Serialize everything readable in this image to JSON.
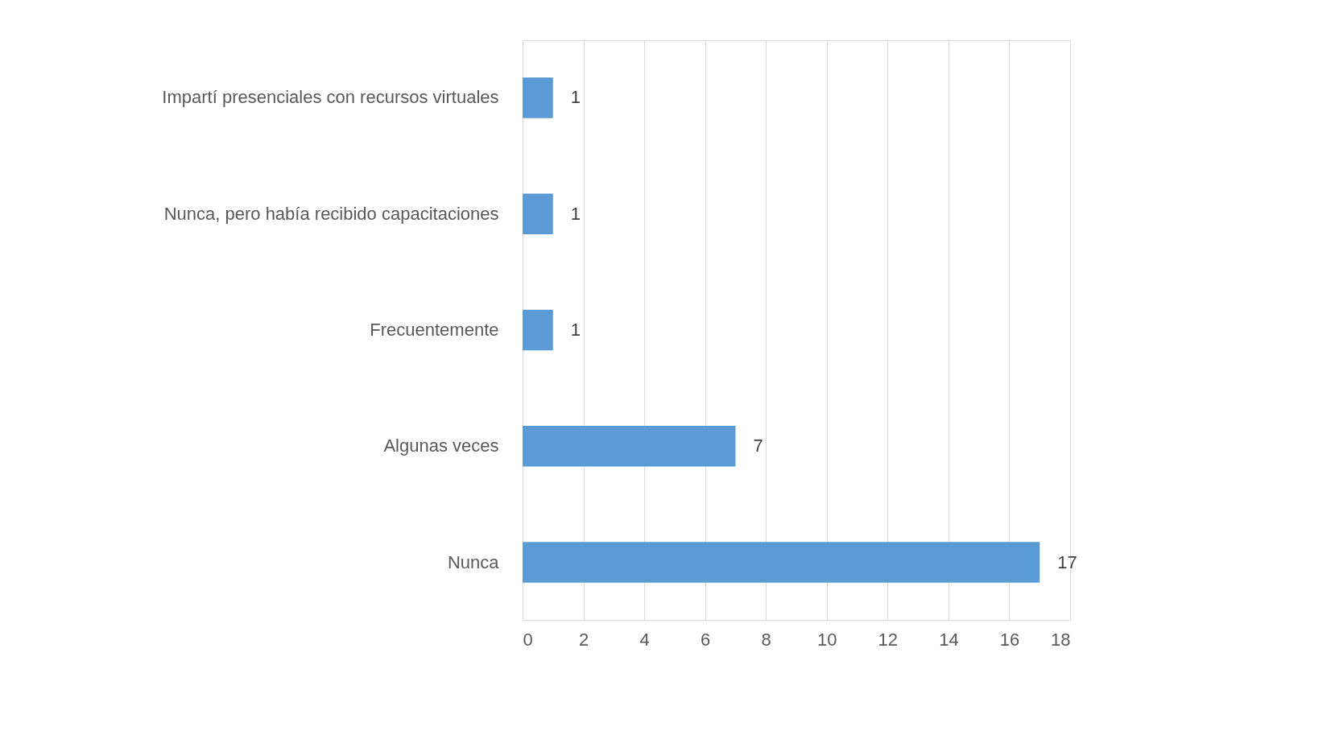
{
  "chart_data": {
    "type": "bar",
    "orientation": "horizontal",
    "categories": [
      "Impartí presenciales con recursos virtuales",
      "Nunca, pero había recibido capacitaciones",
      "Frecuentemente",
      "Algunas veces",
      "Nunca"
    ],
    "values": [
      1,
      1,
      1,
      7,
      17
    ],
    "color": "#5b9bd5",
    "xlim": [
      0,
      18
    ],
    "xticks": [
      0,
      2,
      4,
      6,
      8,
      10,
      12,
      14,
      16,
      18
    ],
    "grid": "x",
    "data_labels": true
  }
}
